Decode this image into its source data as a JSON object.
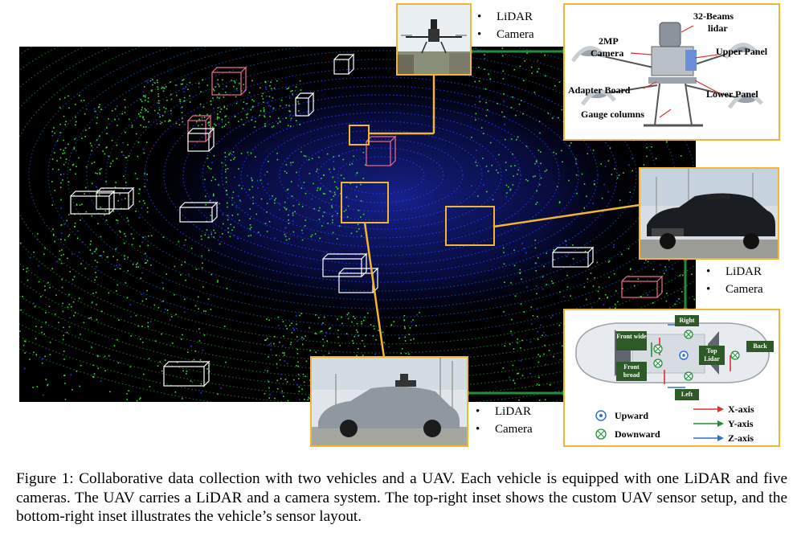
{
  "uav_sensors": [
    "LiDAR",
    "Camera"
  ],
  "vehicle1_sensors": [
    "LiDAR",
    "Camera"
  ],
  "vehicle2_sensors": [
    "LiDAR",
    "Camera"
  ],
  "uav_inset_labels": {
    "beams": "32-Beams",
    "lidar": "lidar",
    "mp": "2MP",
    "camera": "Camera",
    "upper_panel": "Upper Panel",
    "lower_panel": "Lower Panel",
    "adapter_board": "Adapter Board",
    "gauge_columns": "Gauge columns"
  },
  "vehicle_layout": {
    "right": "Right",
    "left": "Left",
    "front_wide": "Front wide",
    "front_broad": "Front broad",
    "top_lidar": "Top Lidar",
    "back": "Back",
    "upward": "Upward",
    "downward": "Downward",
    "x_axis": "X-axis",
    "y_axis": "Y-axis",
    "z_axis": "Z-axis"
  },
  "colors": {
    "highlight": "#f2b632",
    "connector": "#1f8f3a",
    "points_green": "#3ddc3a",
    "points_blue": "#1b2fd0"
  },
  "caption": "Figure 1: Collaborative data collection with two vehicles and a UAV. Each vehicle is equipped with one LiDAR and five cameras. The UAV carries a LiDAR and a camera system. The top-right inset shows the custom UAV sensor setup, and the bottom-right inset illustrates the vehicle’s sensor layout."
}
